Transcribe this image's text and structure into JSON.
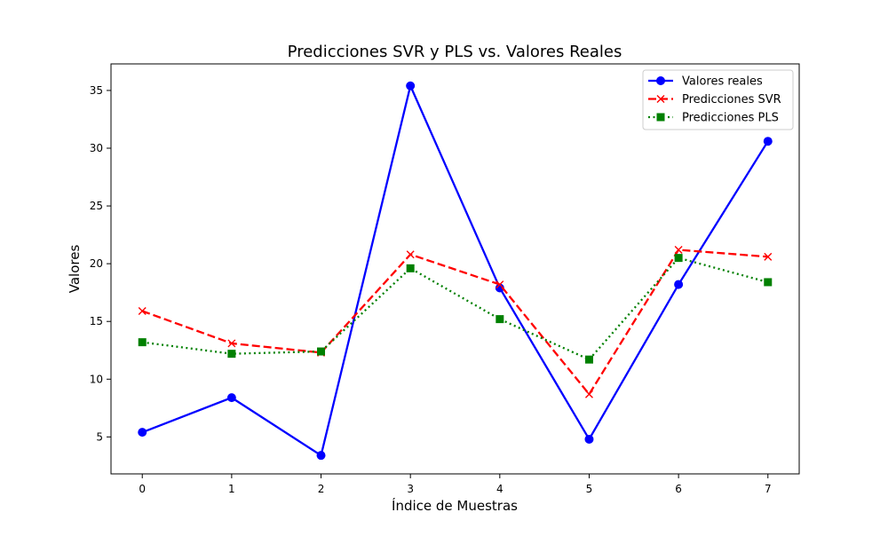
{
  "chart_data": {
    "type": "line",
    "title": "Predicciones SVR y PLS vs. Valores Reales",
    "xlabel": "Índice de Muestras",
    "ylabel": "Valores",
    "x": [
      0,
      1,
      2,
      3,
      4,
      5,
      6,
      7
    ],
    "xlim": [
      -0.35,
      7.35
    ],
    "ylim": [
      1.8,
      37.3
    ],
    "xticks": [
      0,
      1,
      2,
      3,
      4,
      5,
      6,
      7
    ],
    "yticks": [
      5,
      10,
      15,
      20,
      25,
      30,
      35
    ],
    "grid": false,
    "legend_position": "top-right",
    "series": [
      {
        "name": "Valores reales",
        "values": [
          5.4,
          8.4,
          3.4,
          35.4,
          17.9,
          4.8,
          18.2,
          30.6
        ],
        "color": "#0000ff",
        "linestyle": "solid",
        "marker": "circle"
      },
      {
        "name": "Predicciones SVR",
        "values": [
          15.9,
          13.1,
          12.3,
          20.8,
          18.2,
          8.7,
          21.2,
          20.6
        ],
        "color": "#ff0000",
        "linestyle": "dashed",
        "marker": "x"
      },
      {
        "name": "Predicciones PLS",
        "values": [
          13.2,
          12.2,
          12.4,
          19.6,
          15.2,
          11.7,
          20.5,
          18.4
        ],
        "color": "#008000",
        "linestyle": "dotted",
        "marker": "square"
      }
    ]
  }
}
